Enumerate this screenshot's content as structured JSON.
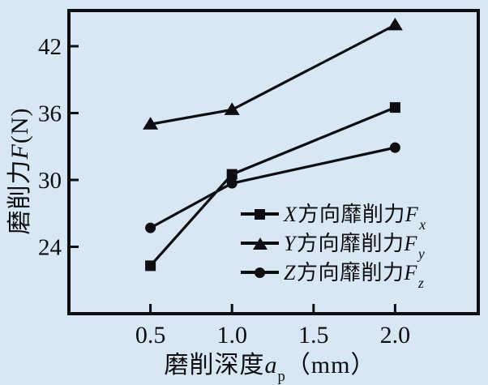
{
  "figure": {
    "background": "#d7e7f4",
    "ink": "#0d0d12"
  },
  "chart_data": {
    "type": "line",
    "x": [
      0.5,
      1.0,
      2.0
    ],
    "series": [
      {
        "name_prefix": "X",
        "name_cn": "方向靡削力",
        "name_f": "F",
        "name_sub": "x",
        "marker": "square",
        "values": [
          22.3,
          30.5,
          36.5
        ]
      },
      {
        "name_prefix": "Y",
        "name_cn": "方向靡削力",
        "name_f": "F",
        "name_sub": "y",
        "marker": "triangle",
        "values": [
          35.0,
          36.3,
          43.9
        ]
      },
      {
        "name_prefix": "Z",
        "name_cn": "方向靡削力",
        "name_f": "F",
        "name_sub": "z",
        "marker": "circle",
        "values": [
          25.7,
          29.7,
          32.9
        ]
      }
    ],
    "xlabel_cn": "磨削深度",
    "xlabel_var": "a",
    "xlabel_sub": "p",
    "xlabel_unit": "（mm）",
    "ylabel_cn": "磨削力",
    "ylabel_var": "F",
    "ylabel_unit": "(N)",
    "x_ticks": [
      0.5,
      1.0,
      1.5,
      2.0
    ],
    "x_tick_labels": [
      "0.5",
      "1.0",
      "1.5",
      "2.0"
    ],
    "y_ticks": [
      24,
      30,
      36,
      42
    ],
    "y_tick_labels": [
      "24",
      "30",
      "36",
      "42"
    ],
    "xlim": [
      0,
      2.51
    ],
    "ylim": [
      18,
      45.2
    ],
    "grid": false,
    "line_color": "#0d0d12",
    "legend_position": "inside lower right"
  }
}
